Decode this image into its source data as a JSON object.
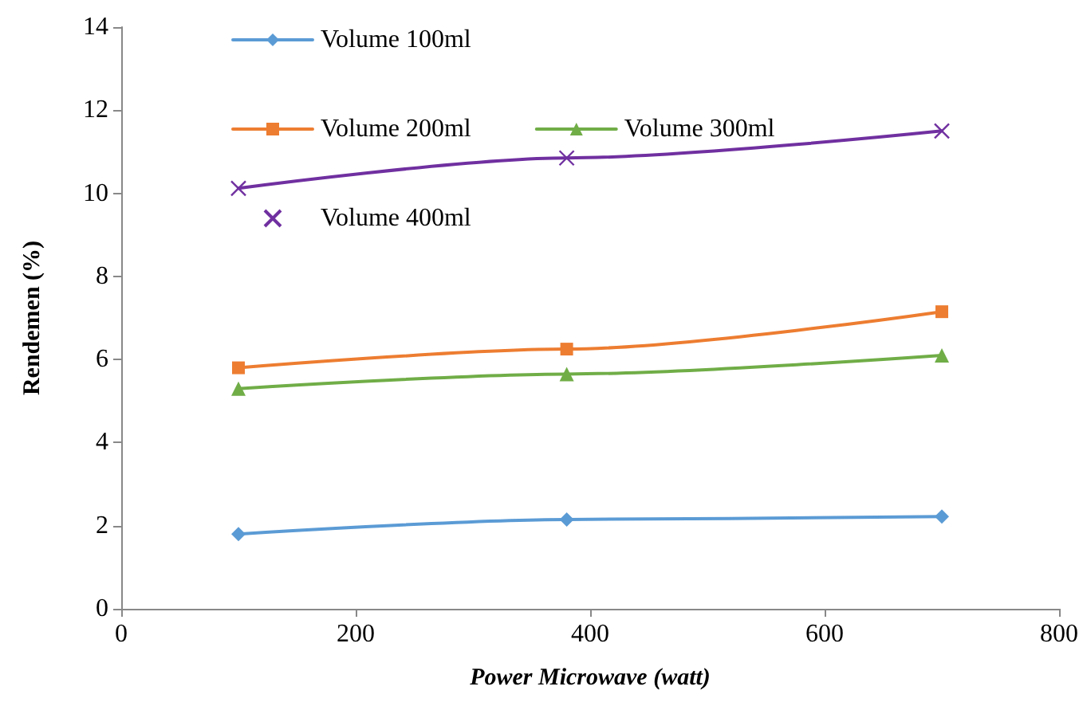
{
  "chart_data": {
    "type": "line",
    "xlabel": "Power Microwave (watt)",
    "ylabel": "Rendemen (%)",
    "x": [
      100,
      380,
      700
    ],
    "series": [
      {
        "name": "Volume 100ml",
        "color": "#5b9bd5",
        "marker": "diamond",
        "values": [
          1.8,
          2.15,
          2.22
        ]
      },
      {
        "name": "Volume 200ml",
        "color": "#ed7d31",
        "marker": "square",
        "values": [
          5.8,
          6.25,
          7.15
        ]
      },
      {
        "name": "Volume 300ml",
        "color": "#70ad47",
        "marker": "triangle",
        "values": [
          5.3,
          5.65,
          6.1
        ]
      },
      {
        "name": "Volume 400ml",
        "color": "#7030a0",
        "marker": "cross",
        "values": [
          10.12,
          10.85,
          11.5
        ]
      }
    ],
    "xlim": [
      0,
      800
    ],
    "xticks": [
      0,
      200,
      400,
      600,
      800
    ],
    "ylim": [
      0,
      14
    ],
    "yticks": [
      0,
      2,
      4,
      6,
      8,
      10,
      12,
      14
    ],
    "grid": false,
    "legend": "top",
    "line_style": "solid"
  }
}
